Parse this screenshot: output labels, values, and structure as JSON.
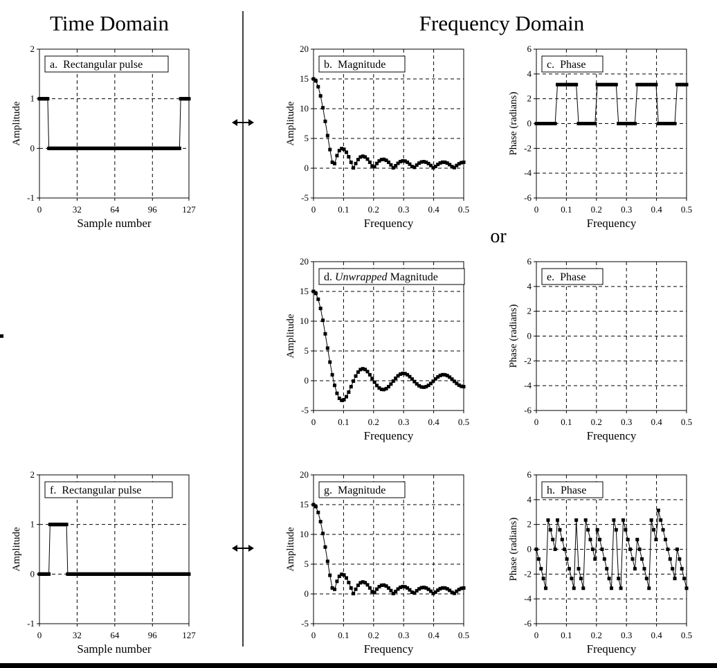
{
  "header": {
    "left": "Time Domain",
    "right": "Frequency Domain",
    "or": "or"
  },
  "chart_data": [
    {
      "id": "a",
      "type": "scatter",
      "title": "a.  Rectangular pulse",
      "xlabel": "Sample number",
      "ylabel": "Amplitude",
      "xlim": [
        0,
        127
      ],
      "ylim": [
        -1,
        2
      ],
      "xticks": [
        0,
        32,
        64,
        96,
        127
      ],
      "yticks": [
        -1,
        0,
        1,
        2
      ],
      "xticklabels": [
        "0",
        "32",
        "64",
        "96",
        "127"
      ],
      "yticklabels": [
        "-1",
        "0",
        "1",
        "2"
      ],
      "series": [
        {
          "kind": "pulse",
          "n": 128,
          "ones_from": [
            0,
            120
          ],
          "ones_to": [
            7,
            127
          ],
          "values_high": 1,
          "values_low": 0
        }
      ]
    },
    {
      "id": "b",
      "type": "line",
      "title": "b.  Magnitude",
      "xlabel": "Frequency",
      "ylabel": "Amplitude",
      "xlim": [
        0,
        0.5
      ],
      "ylim": [
        -5,
        20
      ],
      "xticks": [
        0,
        0.1,
        0.2,
        0.3,
        0.4,
        0.5
      ],
      "yticks": [
        -5,
        0,
        5,
        10,
        15,
        20
      ],
      "xticklabels": [
        "0",
        "0.1",
        "0.2",
        "0.3",
        "0.4",
        "0.5"
      ],
      "yticklabels": [
        "-5",
        "0",
        "5",
        "10",
        "15",
        "20"
      ],
      "series": [
        {
          "kind": "dft_mag",
          "width": 15,
          "n": 128,
          "points": 65
        }
      ]
    },
    {
      "id": "c",
      "type": "line",
      "title": "c.  Phase",
      "xlabel": "Frequency",
      "ylabel": "Phase (radians)",
      "xlim": [
        0,
        0.5
      ],
      "ylim": [
        -6,
        6
      ],
      "xticks": [
        0,
        0.1,
        0.2,
        0.3,
        0.4,
        0.5
      ],
      "yticks": [
        -6,
        -4,
        -2,
        0,
        2,
        4,
        6
      ],
      "xticklabels": [
        "0",
        "0.1",
        "0.2",
        "0.3",
        "0.4",
        "0.5"
      ],
      "yticklabels": [
        "-6",
        "-4",
        "-2",
        "0",
        "2",
        "4",
        "6"
      ],
      "series": [
        {
          "kind": "dft_phase_sign",
          "width": 15,
          "n": 128,
          "points": 65
        }
      ]
    },
    {
      "id": "d",
      "type": "line",
      "title_pre": "d. ",
      "title_em": "Unwrapped",
      "title_post": " Magnitude",
      "xlabel": "Frequency",
      "ylabel": "Amplitude",
      "xlim": [
        0,
        0.5
      ],
      "ylim": [
        -5,
        20
      ],
      "xticks": [
        0,
        0.1,
        0.2,
        0.3,
        0.4,
        0.5
      ],
      "yticks": [
        -5,
        0,
        5,
        10,
        15,
        20
      ],
      "xticklabels": [
        "0",
        "0.1",
        "0.2",
        "0.3",
        "0.4",
        "0.5"
      ],
      "yticklabels": [
        "-5",
        "0",
        "5",
        "10",
        "15",
        "20"
      ],
      "series": [
        {
          "kind": "dft_real",
          "width": 15,
          "n": 128,
          "points": 65
        }
      ]
    },
    {
      "id": "e",
      "type": "line",
      "title": "e.  Phase",
      "xlabel": "Frequency",
      "ylabel": "Phase (radians)",
      "xlim": [
        0,
        0.5
      ],
      "ylim": [
        -6,
        6
      ],
      "xticks": [
        0,
        0.1,
        0.2,
        0.3,
        0.4,
        0.5
      ],
      "yticks": [
        -6,
        -4,
        -2,
        0,
        2,
        4,
        6
      ],
      "xticklabels": [
        "0",
        "0.1",
        "0.2",
        "0.3",
        "0.4",
        "0.5"
      ],
      "yticklabels": [
        "-6",
        "-4",
        "-2",
        "0",
        "2",
        "4",
        "6"
      ],
      "series": [
        {
          "kind": "zero",
          "points": 65
        }
      ]
    },
    {
      "id": "f",
      "type": "scatter",
      "title": "f.  Rectangular pulse",
      "xlabel": "Sample number",
      "ylabel": "Amplitude",
      "xlim": [
        0,
        127
      ],
      "ylim": [
        -1,
        2
      ],
      "xticks": [
        0,
        32,
        64,
        96,
        127
      ],
      "yticks": [
        -1,
        0,
        1,
        2
      ],
      "xticklabels": [
        "0",
        "32",
        "64",
        "96",
        "127"
      ],
      "yticklabels": [
        "-1",
        "0",
        "1",
        "2"
      ],
      "series": [
        {
          "kind": "pulse",
          "n": 128,
          "ones_from": [
            9
          ],
          "ones_to": [
            23
          ],
          "values_high": 1,
          "values_low": 0
        }
      ]
    },
    {
      "id": "g",
      "type": "line",
      "title": "g.  Magnitude",
      "xlabel": "Frequency",
      "ylabel": "Amplitude",
      "xlim": [
        0,
        0.5
      ],
      "ylim": [
        -5,
        20
      ],
      "xticks": [
        0,
        0.1,
        0.2,
        0.3,
        0.4,
        0.5
      ],
      "yticks": [
        -5,
        0,
        5,
        10,
        15,
        20
      ],
      "xticklabels": [
        "0",
        "0.1",
        "0.2",
        "0.3",
        "0.4",
        "0.5"
      ],
      "yticklabels": [
        "-5",
        "0",
        "5",
        "10",
        "15",
        "20"
      ],
      "series": [
        {
          "kind": "dft_mag",
          "width": 15,
          "n": 128,
          "points": 65
        }
      ]
    },
    {
      "id": "h",
      "type": "line",
      "title": "h.  Phase",
      "xlabel": "Frequency",
      "ylabel": "Phase (radians)",
      "xlim": [
        0,
        0.5
      ],
      "ylim": [
        -6,
        6
      ],
      "xticks": [
        0,
        0.1,
        0.2,
        0.3,
        0.4,
        0.5
      ],
      "yticks": [
        -6,
        -4,
        -2,
        0,
        2,
        4,
        6
      ],
      "xticklabels": [
        "0",
        "0.1",
        "0.2",
        "0.3",
        "0.4",
        "0.5"
      ],
      "yticklabels": [
        "-6",
        "-4",
        "-2",
        "0",
        "2",
        "4",
        "6"
      ],
      "series": [
        {
          "kind": "dft_phase_wrapped",
          "width": 15,
          "n": 128,
          "shift": 16,
          "points": 65
        }
      ]
    }
  ]
}
